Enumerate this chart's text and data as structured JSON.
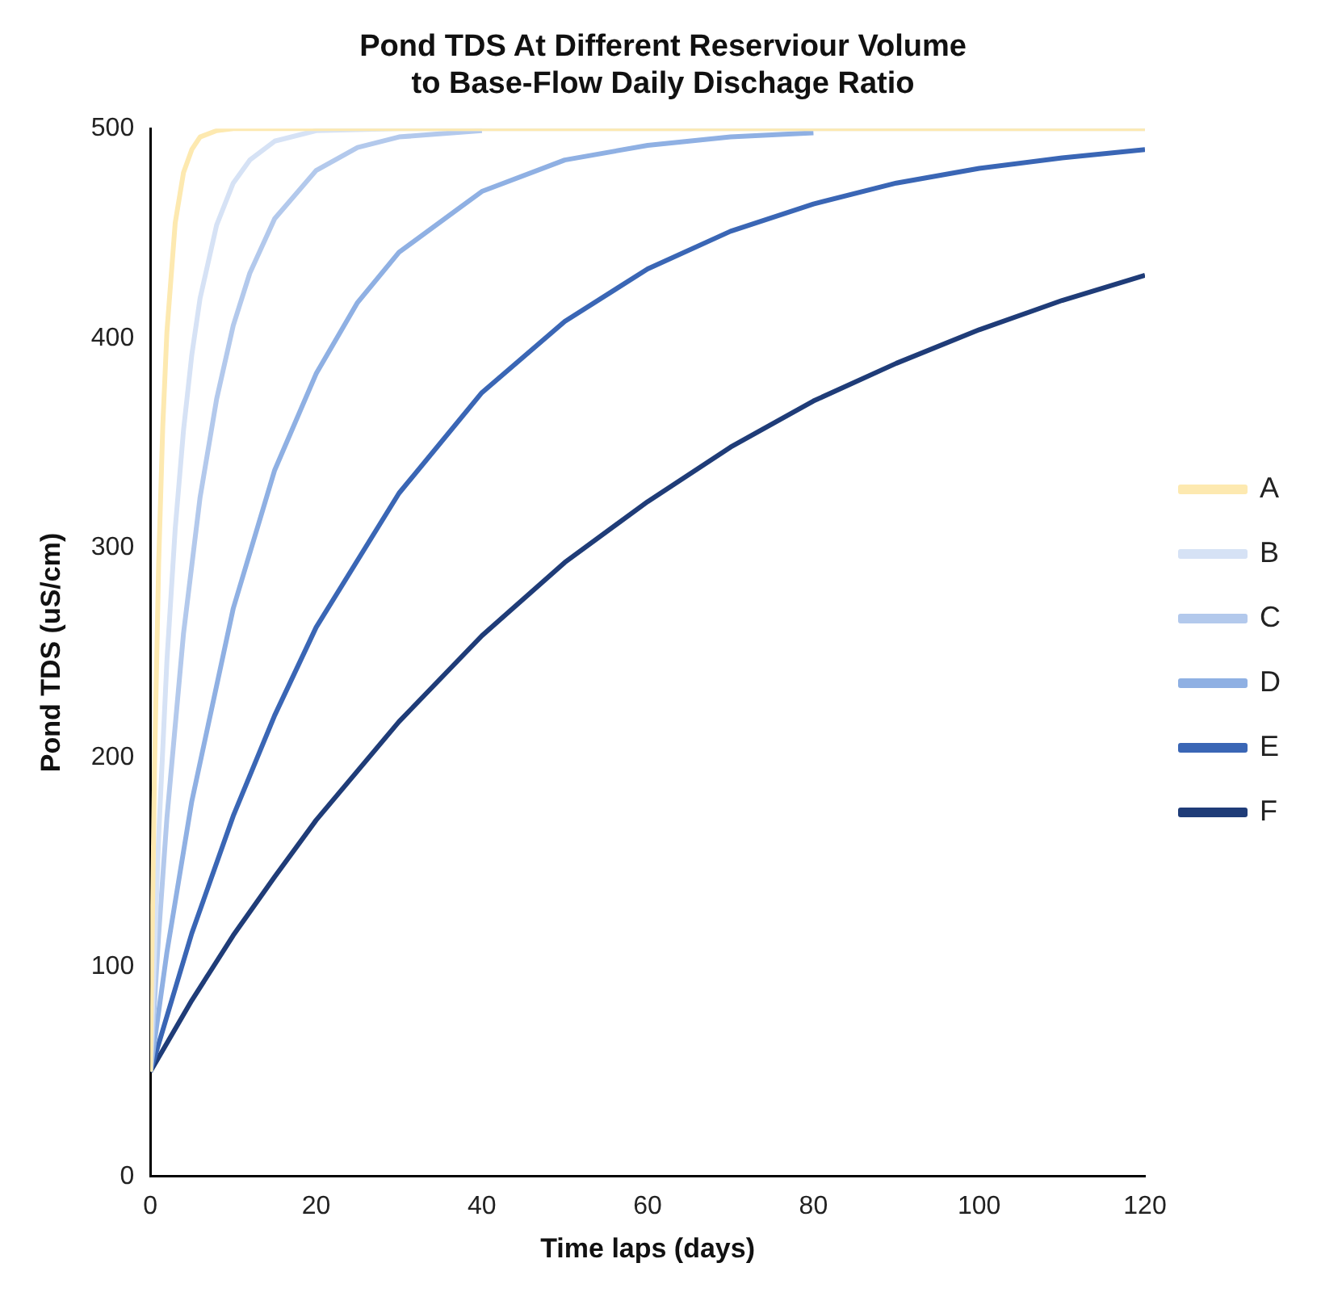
{
  "chart_data": {
    "type": "line",
    "title": "Pond TDS At Different Reserviour Volume to Base-Flow Daily Dischage Ratio",
    "xlabel": "Time laps (days)",
    "ylabel": "Pond TDS (uS/cm)",
    "xlim": [
      0,
      120
    ],
    "xticks": [
      0,
      20,
      40,
      60,
      80,
      100,
      120
    ],
    "ylim": [
      0,
      500
    ],
    "yticks": [
      0,
      100,
      200,
      300,
      400,
      500
    ],
    "grid": false,
    "legend": "right",
    "marker": "none",
    "line_style": "solid",
    "series": [
      {
        "name": "A",
        "color": "#fde9b0",
        "x": [
          0,
          0.5,
          1,
          1.5,
          2,
          3,
          4,
          5,
          6,
          8,
          10,
          120
        ],
        "values": [
          50,
          194,
          292,
          358,
          403,
          455,
          479,
          490,
          496,
          499,
          500,
          500
        ]
      },
      {
        "name": "B",
        "color": "#d6e2f5",
        "x": [
          0,
          1,
          2,
          3,
          4,
          5,
          6,
          8,
          10,
          12,
          15,
          20,
          30,
          120
        ],
        "values": [
          50,
          162,
          246,
          309,
          356,
          392,
          419,
          454,
          474,
          485,
          494,
          499,
          500,
          500
        ]
      },
      {
        "name": "C",
        "color": "#b3c9ec",
        "x": [
          0,
          1,
          2,
          4,
          6,
          8,
          10,
          12,
          15,
          20,
          25,
          30,
          40
        ],
        "values": [
          50,
          115,
          171,
          259,
          324,
          371,
          406,
          431,
          457,
          480,
          491,
          496,
          499
        ]
      },
      {
        "name": "D",
        "color": "#8fb0e3",
        "x": [
          0,
          2,
          5,
          10,
          15,
          20,
          25,
          30,
          40,
          50,
          60,
          70,
          80
        ],
        "values": [
          50,
          107,
          179,
          271,
          337,
          383,
          417,
          441,
          470,
          485,
          492,
          496,
          498
        ]
      },
      {
        "name": "E",
        "color": "#3a66b5",
        "x": [
          0,
          5,
          10,
          15,
          20,
          30,
          40,
          50,
          60,
          70,
          80,
          90,
          100,
          110,
          120
        ],
        "values": [
          50,
          116,
          172,
          220,
          262,
          326,
          374,
          408,
          433,
          451,
          464,
          474,
          481,
          486,
          490
        ]
      },
      {
        "name": "F",
        "color": "#1f3c78",
        "x": [
          0,
          5,
          10,
          15,
          20,
          30,
          40,
          50,
          60,
          70,
          80,
          90,
          100,
          110,
          120
        ],
        "values": [
          50,
          84,
          115,
          143,
          170,
          217,
          258,
          293,
          322,
          348,
          370,
          388,
          404,
          418,
          430
        ]
      }
    ]
  }
}
